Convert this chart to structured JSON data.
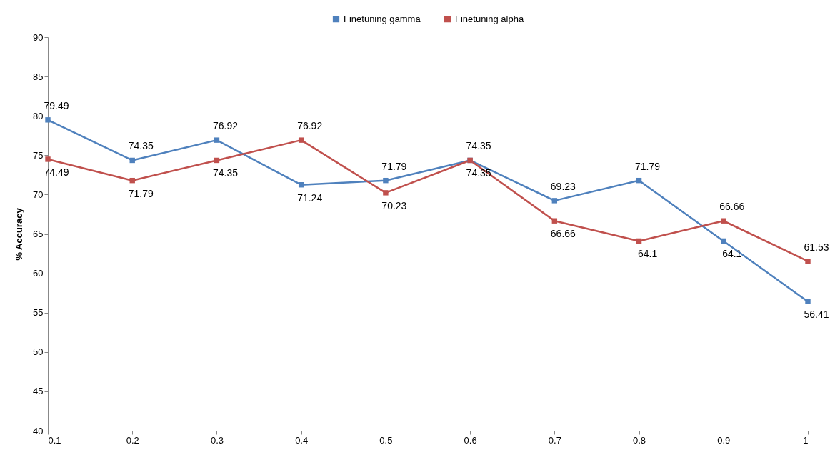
{
  "chart_data": {
    "type": "line",
    "ylabel": "% Accuracy",
    "x": [
      0.1,
      0.2,
      0.3,
      0.4,
      0.5,
      0.6,
      0.7,
      0.8,
      0.9,
      1
    ],
    "xlim": [
      0.1,
      1
    ],
    "xticks": [
      0.1,
      0.2,
      0.3,
      0.4,
      0.5,
      0.6,
      0.7,
      0.8,
      0.9,
      1
    ],
    "ylim": [
      40,
      90
    ],
    "yticks": [
      40,
      45,
      50,
      55,
      60,
      65,
      70,
      75,
      80,
      85,
      90
    ],
    "series": [
      {
        "name": "Finetuning gamma",
        "color": "#4f81bd",
        "values": [
          79.49,
          74.35,
          76.92,
          71.24,
          71.79,
          74.35,
          69.23,
          71.79,
          64.1,
          56.41
        ]
      },
      {
        "name": "Finetuning alpha",
        "color": "#c0504d",
        "values": [
          74.49,
          71.79,
          74.35,
          76.92,
          70.23,
          74.35,
          66.66,
          64.1,
          66.66,
          61.53
        ]
      }
    ],
    "data_labels": true,
    "legend": "top",
    "marker": "square",
    "line_style": "solid",
    "grid": false
  }
}
